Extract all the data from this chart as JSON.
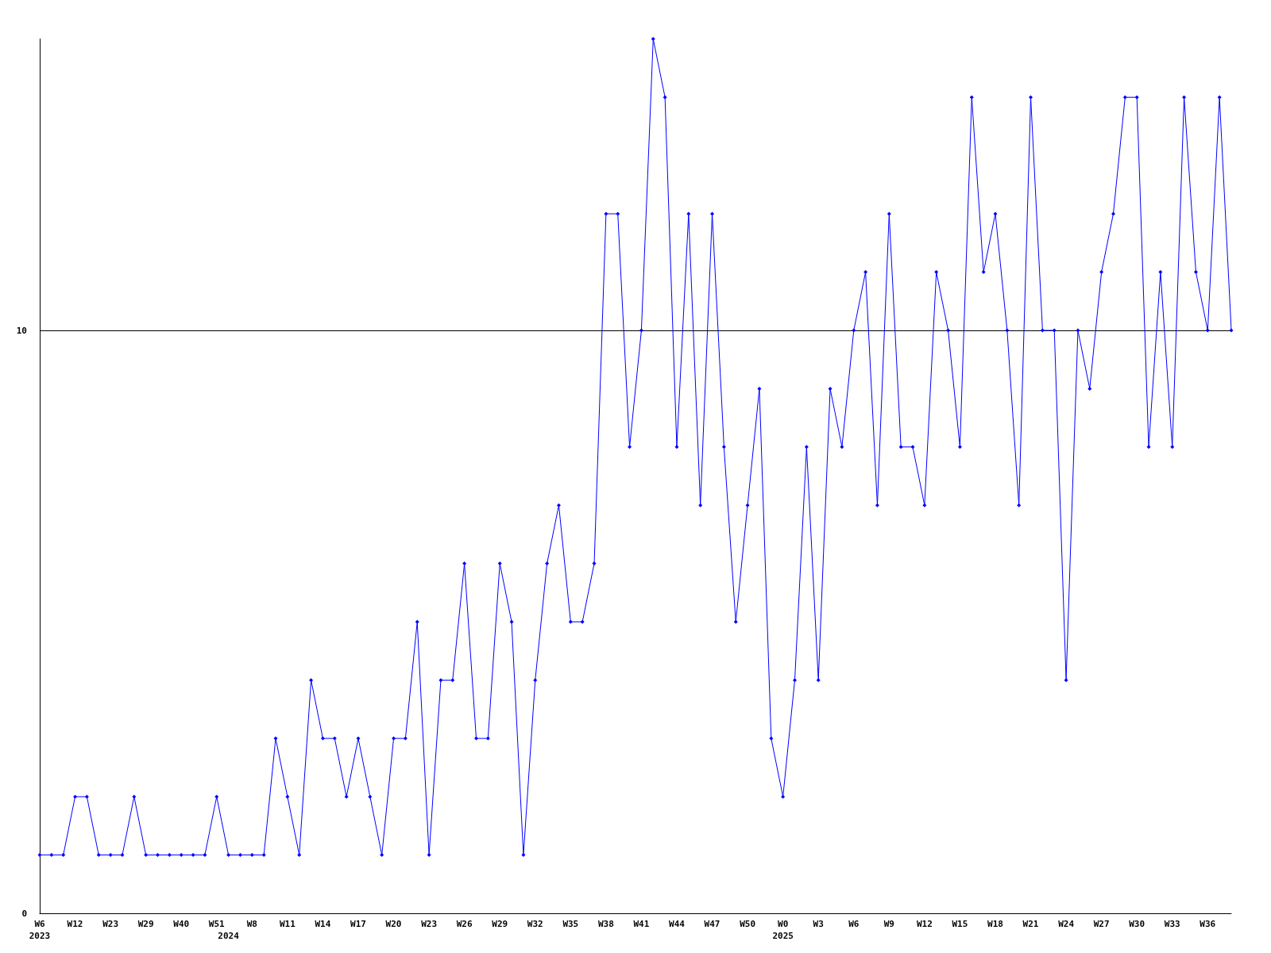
{
  "chart_data": {
    "type": "line",
    "categories": [
      "W6\n2023",
      null,
      null,
      "W12",
      null,
      null,
      "W23",
      null,
      null,
      "W29",
      null,
      null,
      "W40",
      null,
      null,
      "W51",
      "\n2024",
      null,
      "W8",
      null,
      null,
      "W11",
      null,
      null,
      "W14",
      null,
      null,
      "W17",
      null,
      null,
      "W20",
      null,
      null,
      "W23",
      null,
      null,
      "W26",
      null,
      null,
      "W29",
      null,
      null,
      "W32",
      null,
      null,
      "W35",
      null,
      null,
      "W38",
      null,
      null,
      "W41",
      null,
      null,
      "W44",
      null,
      null,
      "W47",
      null,
      null,
      "W50",
      null,
      null,
      "W0\n2025",
      null,
      null,
      "W3",
      null,
      null,
      "W6",
      null,
      null,
      "W9",
      null,
      null,
      "W12",
      null,
      null,
      "W15",
      null,
      null,
      "W18",
      null,
      null,
      "W21",
      null,
      null,
      "W24",
      null,
      null,
      "W27",
      null,
      null,
      "W30",
      null,
      null,
      "W33",
      null,
      null,
      "W36",
      null,
      null
    ],
    "series": [
      {
        "color": "#0000ff",
        "values": [
          1,
          1,
          1,
          2,
          2,
          1,
          1,
          1,
          2,
          1,
          1,
          1,
          1,
          1,
          1,
          2,
          1,
          1,
          1,
          1,
          3,
          2,
          1,
          4,
          3,
          3,
          2,
          3,
          2,
          1,
          3,
          3,
          5,
          1,
          4,
          4,
          6,
          3,
          3,
          6,
          5,
          1,
          4,
          6,
          7,
          5,
          5,
          6,
          12,
          12,
          8,
          10,
          15,
          14,
          8,
          12,
          7,
          12,
          8,
          5,
          7,
          9,
          3,
          2,
          4,
          8,
          4,
          9,
          8,
          10,
          11,
          7,
          12,
          8,
          8,
          7,
          11,
          10,
          8,
          14,
          11,
          12,
          10,
          7,
          14,
          10,
          10,
          4,
          10,
          9,
          11,
          12,
          14,
          14,
          8,
          11,
          8,
          14,
          11,
          10,
          14,
          10
        ]
      }
    ],
    "ylim": [
      0,
      15
    ],
    "yticks": [
      0,
      10
    ],
    "grid": "y",
    "marker": "diamond",
    "line_style": "solid"
  }
}
